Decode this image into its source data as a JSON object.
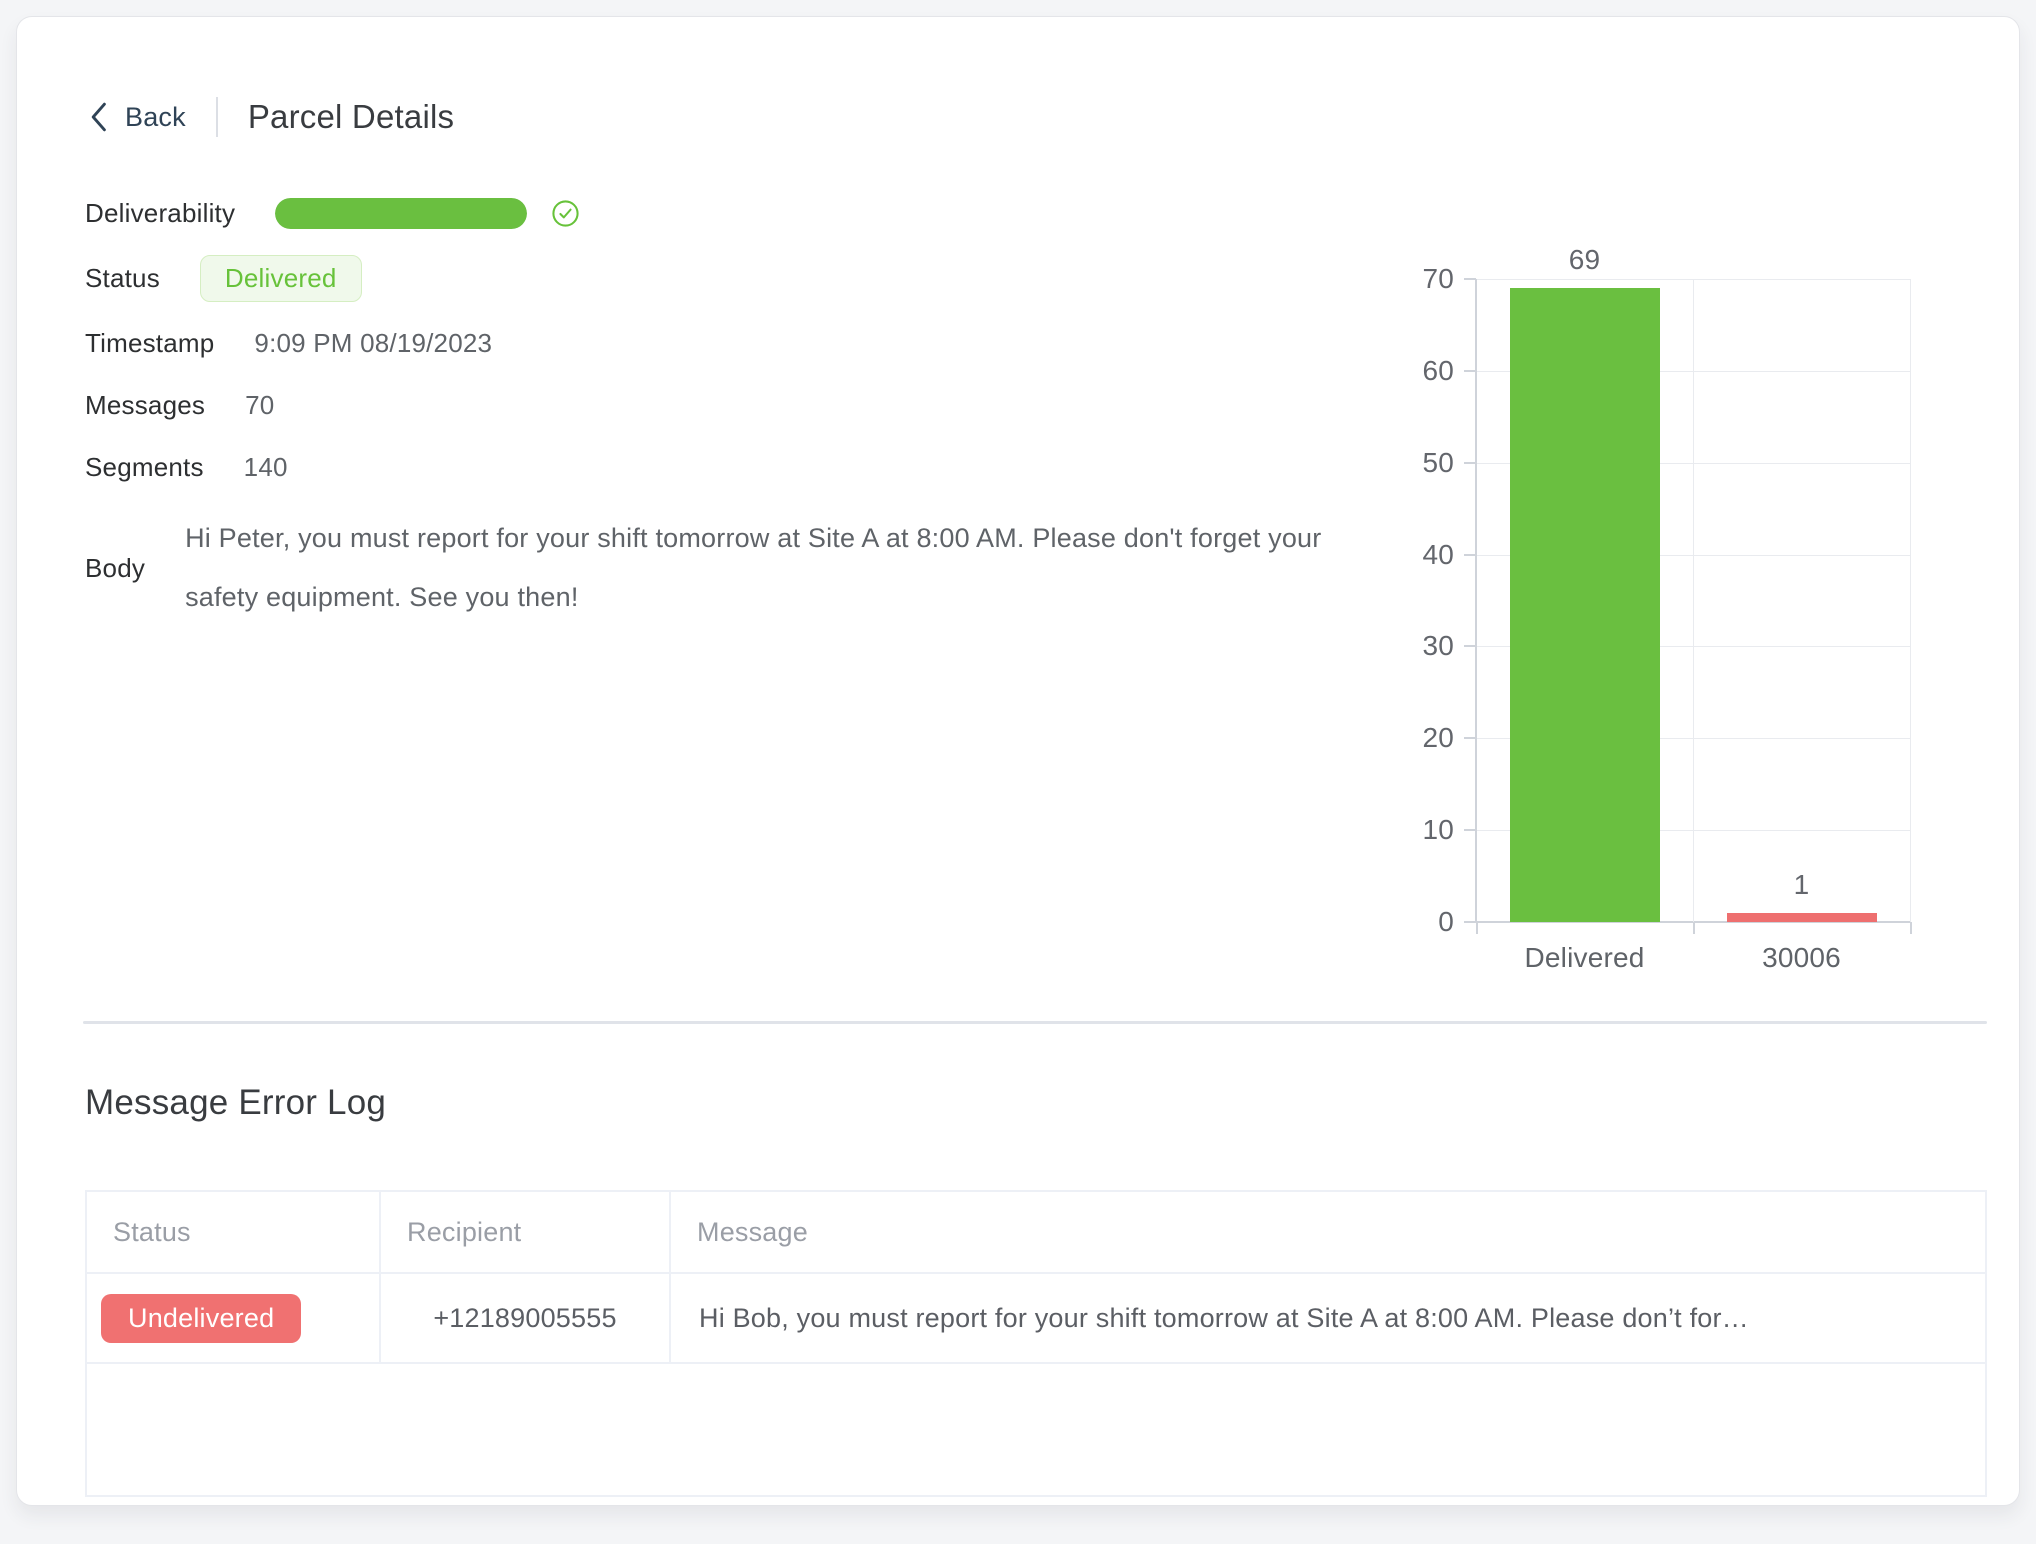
{
  "header": {
    "back_label": "Back",
    "title": "Parcel Details"
  },
  "details": {
    "deliverability_label": "Deliverability",
    "deliverability_fill_percent": 100,
    "status_label": "Status",
    "status_value": "Delivered",
    "timestamp_label": "Timestamp",
    "timestamp_value": "9:09 PM 08/19/2023",
    "messages_label": "Messages",
    "messages_value": "70",
    "segments_label": "Segments",
    "segments_value": "140",
    "body_label": "Body",
    "body_value": "Hi Peter, you must report for your shift tomorrow at Site A at 8:00 AM. Please don't forget your safety equipment. See you then!"
  },
  "chart_data": {
    "type": "bar",
    "categories": [
      "Delivered",
      "30006"
    ],
    "values": [
      69,
      1
    ],
    "value_labels": [
      "69",
      "1"
    ],
    "bar_colors": [
      "#6abf40",
      "#ee6f6f"
    ],
    "title": "",
    "xlabel": "",
    "ylabel": "",
    "ylim": [
      0,
      70
    ],
    "yticks": [
      0,
      10,
      20,
      30,
      40,
      50,
      60,
      70
    ],
    "grid": true,
    "legend": false
  },
  "error_log": {
    "title": "Message Error Log",
    "columns": [
      "Status",
      "Recipient",
      "Message"
    ],
    "rows": [
      {
        "status": "Undelivered",
        "recipient": "+12189005555",
        "message": "Hi Bob, you must report for your shift tomorrow at Site A at 8:00 AM. Please don’t for…"
      }
    ]
  },
  "colors": {
    "accent_green": "#67c23a",
    "chart_green": "#6abf40",
    "chart_red": "#ee6f6f",
    "badge_green_bg": "#f0f9eb",
    "badge_green_border": "#d5eec2",
    "badge_red_bg": "#f07171",
    "back_link": "#2f4356"
  }
}
